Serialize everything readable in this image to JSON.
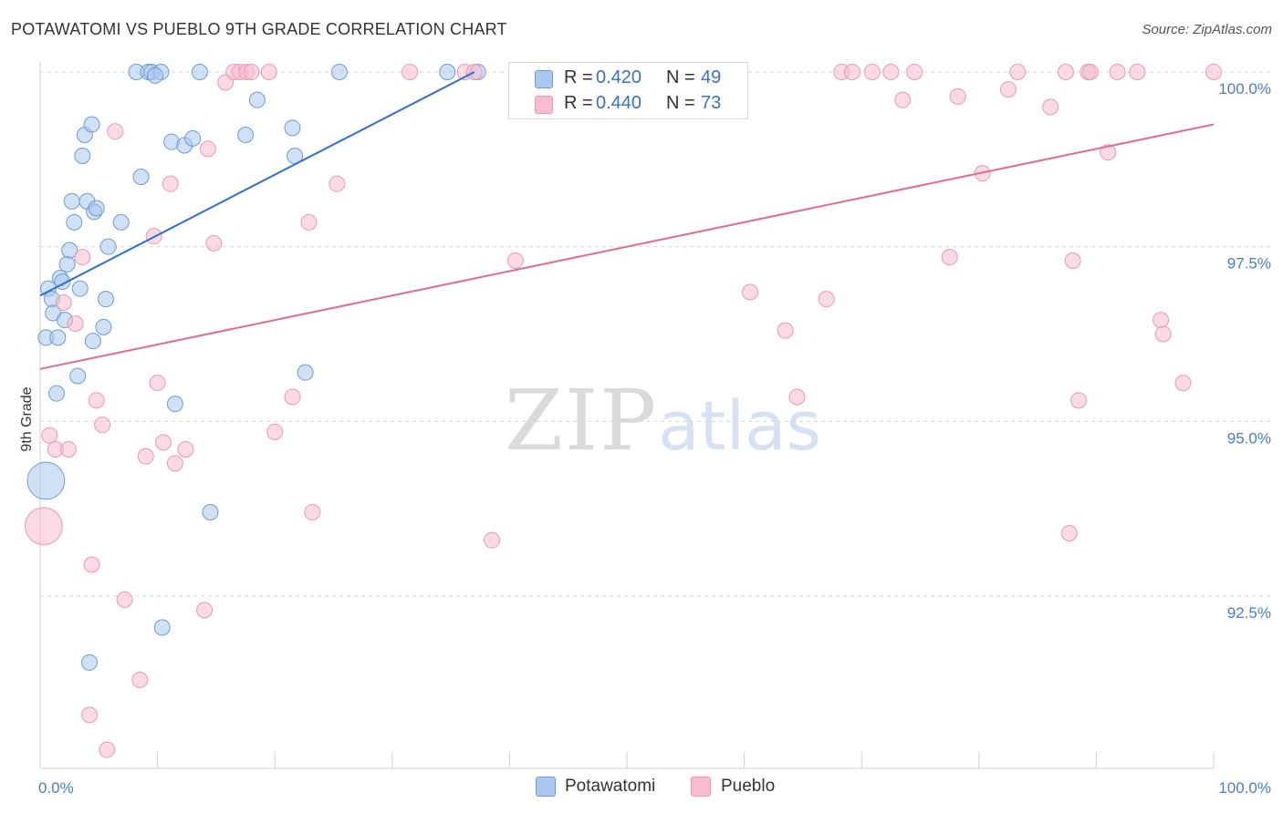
{
  "title": "POTAWATOMI VS PUEBLO 9TH GRADE CORRELATION CHART",
  "source": "Source: ZipAtlas.com",
  "watermark": {
    "zip": "ZIP",
    "atlas": "atlas"
  },
  "legend_top": [
    {
      "r_label": "R =",
      "r_value": "0.420",
      "n_label": "N =",
      "n_value": "49"
    },
    {
      "r_label": "R =",
      "r_value": "0.440",
      "n_label": "N =",
      "n_value": "73"
    }
  ],
  "legend_bottom": [
    "Potawatomi",
    "Pueblo"
  ],
  "colors": {
    "potawatomi_fill": "#aac8ee",
    "potawatomi_stroke": "#6f9bd6",
    "potawatomi_line": "#2f6fce",
    "pueblo_fill": "#f7bccd",
    "pueblo_stroke": "#e89ab2",
    "pueblo_line": "#e06b93",
    "tick_text": "#4a7cc9",
    "grid": "#d7d7d7"
  },
  "chart_data": {
    "type": "scatter",
    "title": "POTAWATOMI VS PUEBLO 9TH GRADE CORRELATION CHART",
    "xlabel": "",
    "ylabel": "9th Grade",
    "xlim": [
      0,
      100
    ],
    "ylim": [
      90.2,
      100.4
    ],
    "x_tick_labels": [
      {
        "value": 0,
        "label": "0.0%"
      },
      {
        "value": 100,
        "label": "100.0%"
      }
    ],
    "y_tick_labels": [
      {
        "value": 100,
        "label": "100.0%"
      },
      {
        "value": 97.5,
        "label": "97.5%"
      },
      {
        "value": 95,
        "label": "95.0%"
      },
      {
        "value": 92.5,
        "label": "92.5%"
      }
    ],
    "grid": true,
    "series": [
      {
        "name": "Potawatomi",
        "trend": {
          "x0": 0,
          "y0": 96.8,
          "x1": 37,
          "y1": 100.0
        },
        "points": [
          [
            0.5,
            94.15,
            2.4
          ],
          [
            0.5,
            96.2,
            1
          ],
          [
            0.7,
            96.9,
            1
          ],
          [
            1,
            96.75,
            1
          ],
          [
            1.1,
            96.55,
            1
          ],
          [
            1.4,
            95.4,
            1
          ],
          [
            1.5,
            96.2,
            1
          ],
          [
            1.7,
            97.05,
            1
          ],
          [
            1.9,
            97.0,
            1
          ],
          [
            2.1,
            96.45,
            1
          ],
          [
            2.3,
            97.25,
            1
          ],
          [
            2.5,
            97.45,
            1
          ],
          [
            2.7,
            98.15,
            1
          ],
          [
            2.9,
            97.85,
            1
          ],
          [
            3.4,
            96.9,
            1
          ],
          [
            3.2,
            95.65,
            1
          ],
          [
            3.6,
            98.8,
            1
          ],
          [
            3.8,
            99.1,
            1
          ],
          [
            4.0,
            98.15,
            1
          ],
          [
            4.4,
            99.25,
            1
          ],
          [
            4.6,
            98.0,
            1
          ],
          [
            4.8,
            98.05,
            1
          ],
          [
            5.6,
            96.75,
            1
          ],
          [
            5.4,
            96.35,
            1
          ],
          [
            5.8,
            97.5,
            1
          ],
          [
            4.5,
            96.15,
            1
          ],
          [
            6.9,
            97.85,
            1
          ],
          [
            8.2,
            100.0,
            1
          ],
          [
            9.2,
            100.0,
            1
          ],
          [
            9.5,
            100.0,
            1
          ],
          [
            10.3,
            100.0,
            1
          ],
          [
            8.6,
            98.5,
            1
          ],
          [
            9.8,
            99.95,
            1
          ],
          [
            11.2,
            99.0,
            1
          ],
          [
            11.5,
            95.25,
            1
          ],
          [
            12.3,
            98.95,
            1
          ],
          [
            13.0,
            99.05,
            1
          ],
          [
            13.6,
            100.0,
            1
          ],
          [
            14.5,
            93.7,
            1
          ],
          [
            10.4,
            92.05,
            1
          ],
          [
            4.2,
            91.55,
            1
          ],
          [
            17.5,
            99.1,
            1
          ],
          [
            18.5,
            99.6,
            1
          ],
          [
            21.5,
            99.2,
            1
          ],
          [
            21.7,
            98.8,
            1
          ],
          [
            22.6,
            95.7,
            1
          ],
          [
            25.5,
            100.0,
            1
          ],
          [
            34.7,
            100.0,
            1
          ],
          [
            37.3,
            100.0,
            1
          ]
        ]
      },
      {
        "name": "Pueblo",
        "trend": {
          "x0": 0,
          "y0": 95.75,
          "x1": 100,
          "y1": 99.25
        },
        "points": [
          [
            0.3,
            93.5,
            2.4
          ],
          [
            0.8,
            94.8,
            1
          ],
          [
            1.3,
            94.6,
            1
          ],
          [
            2.0,
            96.7,
            1
          ],
          [
            2.4,
            94.6,
            1
          ],
          [
            3.0,
            96.4,
            1
          ],
          [
            3.6,
            97.35,
            1
          ],
          [
            4.4,
            92.95,
            1
          ],
          [
            4.2,
            90.8,
            1
          ],
          [
            4.8,
            95.3,
            1
          ],
          [
            5.3,
            94.95,
            1
          ],
          [
            5.7,
            90.3,
            1
          ],
          [
            6.4,
            99.15,
            1
          ],
          [
            7.2,
            92.45,
            1
          ],
          [
            8.5,
            91.3,
            1
          ],
          [
            9.0,
            94.5,
            1
          ],
          [
            9.7,
            97.65,
            1
          ],
          [
            10.0,
            95.55,
            1
          ],
          [
            10.5,
            94.7,
            1
          ],
          [
            11.1,
            98.4,
            1
          ],
          [
            11.5,
            94.4,
            1
          ],
          [
            12.4,
            94.6,
            1
          ],
          [
            14.0,
            92.3,
            1
          ],
          [
            14.3,
            98.9,
            1
          ],
          [
            14.8,
            97.55,
            1
          ],
          [
            15.8,
            99.85,
            1
          ],
          [
            16.5,
            100.0,
            1
          ],
          [
            17.0,
            100.0,
            1
          ],
          [
            17.6,
            100.0,
            1
          ],
          [
            18.0,
            100.0,
            1
          ],
          [
            19.5,
            100.0,
            1
          ],
          [
            20.0,
            94.85,
            1
          ],
          [
            21.5,
            95.35,
            1
          ],
          [
            22.9,
            97.85,
            1
          ],
          [
            23.2,
            93.7,
            1
          ],
          [
            25.3,
            98.4,
            1
          ],
          [
            31.5,
            100.0,
            1
          ],
          [
            36.2,
            100.0,
            1
          ],
          [
            37.0,
            100.0,
            1
          ],
          [
            38.5,
            93.3,
            1
          ],
          [
            40.5,
            97.3,
            1
          ],
          [
            44.5,
            100.0,
            1
          ],
          [
            45.5,
            100.0,
            1
          ],
          [
            48.0,
            100.0,
            1
          ],
          [
            60.5,
            96.85,
            1
          ],
          [
            63.5,
            96.3,
            1
          ],
          [
            64.5,
            95.35,
            1
          ],
          [
            67.0,
            96.75,
            1
          ],
          [
            68.3,
            100.0,
            1
          ],
          [
            69.2,
            100.0,
            1
          ],
          [
            70.9,
            100.0,
            1
          ],
          [
            72.5,
            100.0,
            1
          ],
          [
            73.5,
            99.6,
            1
          ],
          [
            74.5,
            100.0,
            1
          ],
          [
            77.5,
            97.35,
            1
          ],
          [
            78.2,
            99.65,
            1
          ],
          [
            80.3,
            98.55,
            1
          ],
          [
            82.5,
            99.75,
            1
          ],
          [
            83.3,
            100.0,
            1
          ],
          [
            86.1,
            99.5,
            1
          ],
          [
            87.4,
            100.0,
            1
          ],
          [
            87.7,
            93.4,
            1
          ],
          [
            88.0,
            97.3,
            1
          ],
          [
            88.5,
            95.3,
            1
          ],
          [
            89.3,
            100.0,
            1
          ],
          [
            89.5,
            100.0,
            1
          ],
          [
            91.0,
            98.85,
            1
          ],
          [
            91.8,
            100.0,
            1
          ],
          [
            93.5,
            100.0,
            1
          ],
          [
            95.5,
            96.45,
            1
          ],
          [
            95.7,
            96.25,
            1
          ],
          [
            97.4,
            95.55,
            1
          ],
          [
            100.0,
            100.0,
            1
          ]
        ]
      }
    ]
  }
}
